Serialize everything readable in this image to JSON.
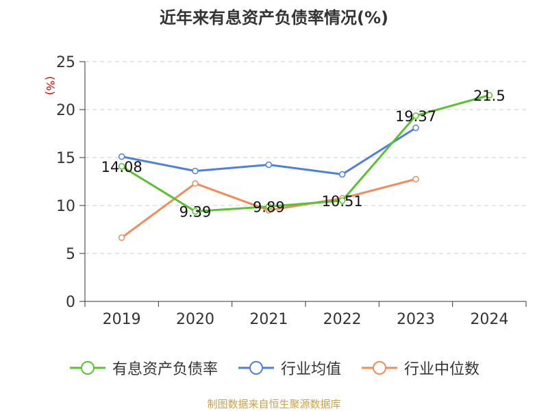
{
  "chart_data": {
    "type": "line",
    "title": "近年来有息资产负债率情况(%)",
    "xlabel": "",
    "ylabel": "(%)",
    "categories": [
      "2019",
      "2020",
      "2021",
      "2022",
      "2023",
      "2024"
    ],
    "ylim": [
      0,
      25
    ],
    "yticks": [
      0,
      5,
      10,
      15,
      20,
      25
    ],
    "grid": true,
    "legend_position": "bottom",
    "series": [
      {
        "name": "有息资产负债率",
        "color": "#5ac22e",
        "values": [
          14.08,
          9.39,
          9.89,
          10.51,
          19.37,
          21.5
        ],
        "labels": [
          "14.08",
          "9.39",
          "9.89",
          "10.51",
          "19.37",
          "21.5"
        ]
      },
      {
        "name": "行业均值",
        "color": "#4d7fdc",
        "values": [
          15.1,
          13.6,
          14.25,
          13.25,
          18.1,
          null
        ]
      },
      {
        "name": "行业中位数",
        "color": "#f08c5a",
        "values": [
          6.65,
          12.3,
          9.5,
          10.75,
          12.75,
          null
        ]
      }
    ]
  },
  "source": "制图数据来自恒生聚源数据库"
}
